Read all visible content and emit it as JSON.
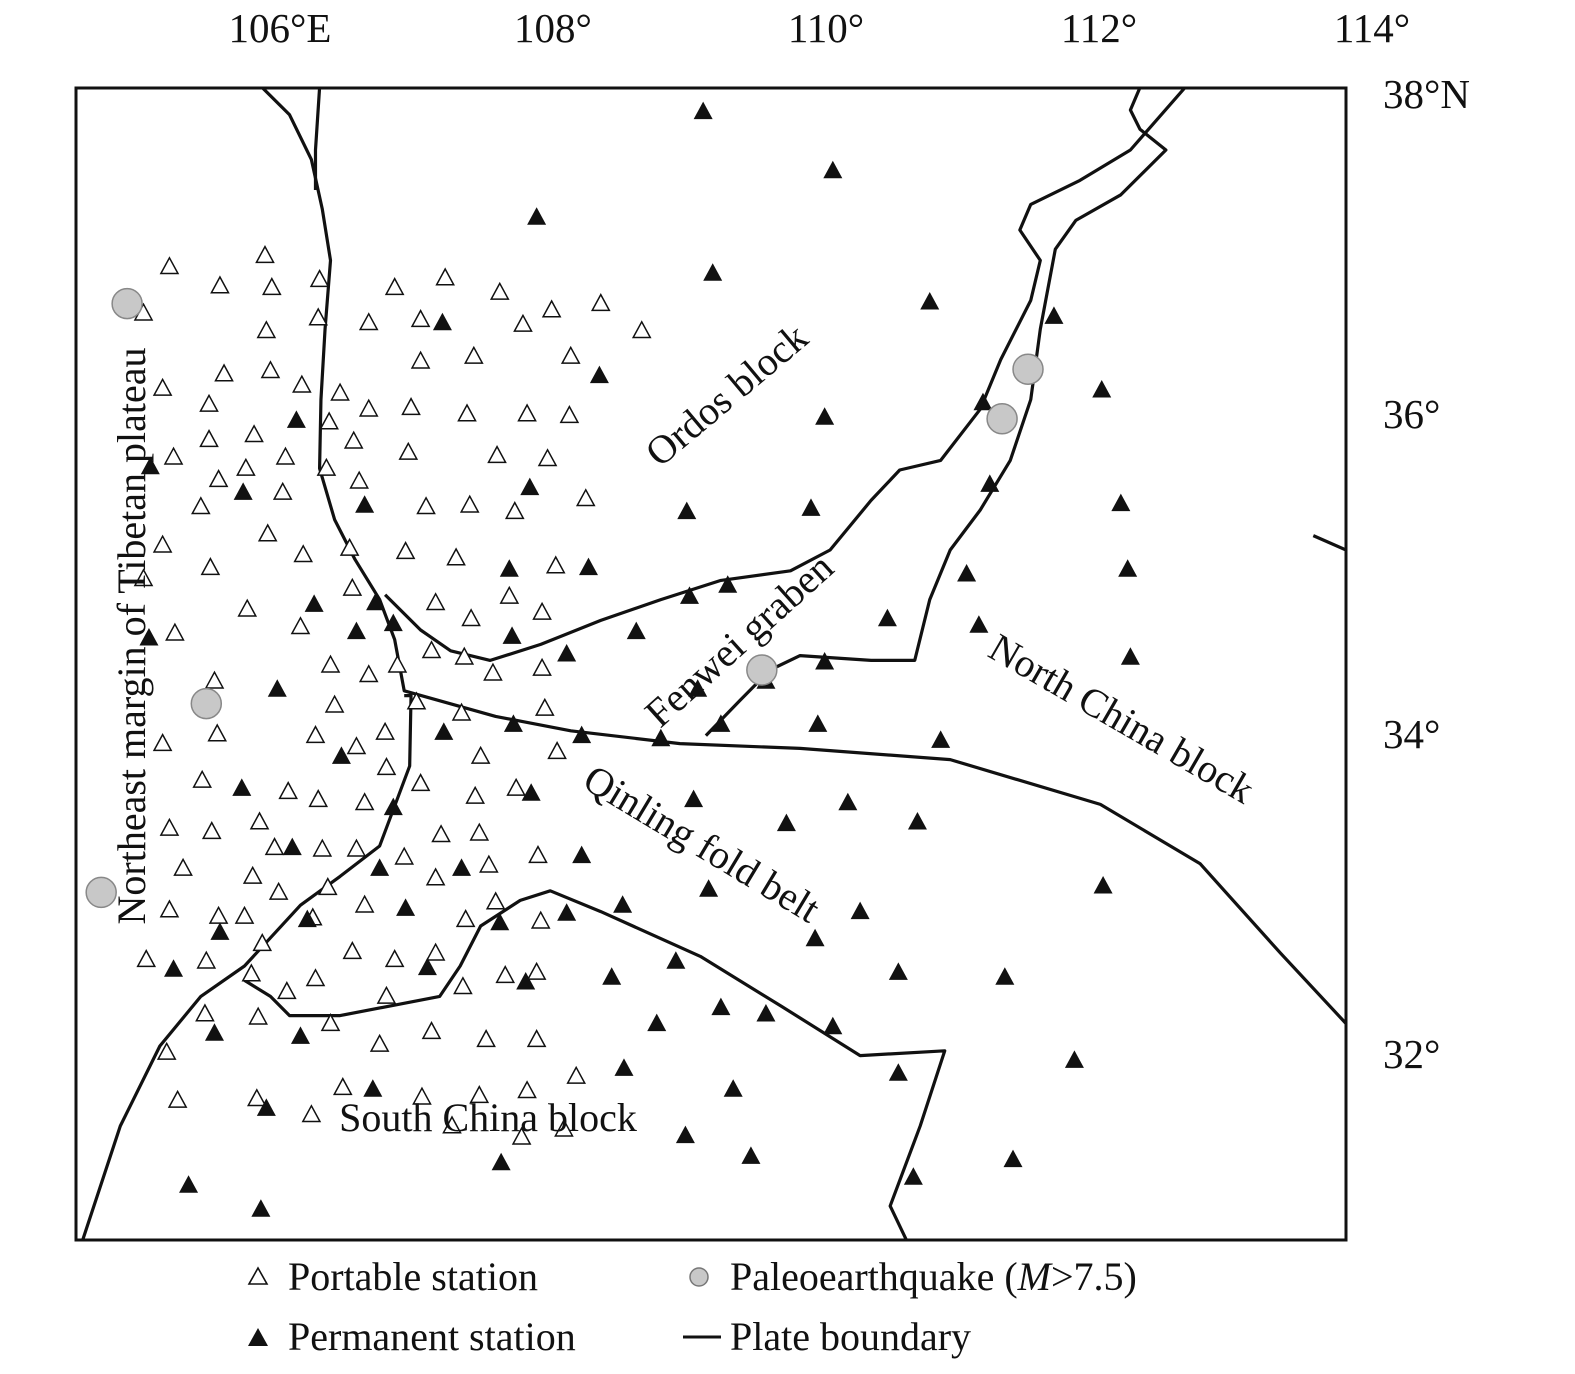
{
  "map": {
    "extent": {
      "lon": [
        104.5,
        113.81
      ],
      "lat": [
        30.8,
        38.04
      ]
    },
    "x_ticks": [
      {
        "value": 106,
        "label": "106°E"
      },
      {
        "value": 108,
        "label": "108°"
      },
      {
        "value": 110,
        "label": "110°"
      },
      {
        "value": 112,
        "label": "112°"
      },
      {
        "value": 114,
        "label": "114°"
      }
    ],
    "y_ticks": [
      {
        "value": 38,
        "label": "38°N"
      },
      {
        "value": 36,
        "label": "36°"
      },
      {
        "value": 34,
        "label": "34°"
      },
      {
        "value": 32,
        "label": "32°"
      }
    ],
    "colors": {
      "boundary": "#111111",
      "permanent": "#111111",
      "portable": "#ffffff",
      "paleo": "#c8c8c8"
    },
    "regions": {
      "ordos": "Ordos block",
      "fenwei": "Fenwei graben",
      "north_china": "North China block",
      "qinling": "Qinling fold belt",
      "south_china": "South China block",
      "tibet": "Northeast margin of Tibetan plateau"
    },
    "portable_stations": [
      [
        105.89,
        36.99
      ],
      [
        105.19,
        36.92
      ],
      [
        105.56,
        36.8
      ],
      [
        105.94,
        36.79
      ],
      [
        106.29,
        36.84
      ],
      [
        106.84,
        36.79
      ],
      [
        107.21,
        36.85
      ],
      [
        107.61,
        36.76
      ],
      [
        107.99,
        36.65
      ],
      [
        108.35,
        36.69
      ],
      [
        108.65,
        36.52
      ],
      [
        105.0,
        36.63
      ],
      [
        105.9,
        36.52
      ],
      [
        106.28,
        36.6
      ],
      [
        106.65,
        36.57
      ],
      [
        107.03,
        36.59
      ],
      [
        107.78,
        36.56
      ],
      [
        107.42,
        36.36
      ],
      [
        107.03,
        36.33
      ],
      [
        108.13,
        36.36
      ],
      [
        105.59,
        36.25
      ],
      [
        105.93,
        36.27
      ],
      [
        105.14,
        36.16
      ],
      [
        106.16,
        36.18
      ],
      [
        106.44,
        36.13
      ],
      [
        105.48,
        36.06
      ],
      [
        106.65,
        36.03
      ],
      [
        106.96,
        36.04
      ],
      [
        107.37,
        36.0
      ],
      [
        107.81,
        36.0
      ],
      [
        108.12,
        35.99
      ],
      [
        106.36,
        35.95
      ],
      [
        105.81,
        35.87
      ],
      [
        105.48,
        35.84
      ],
      [
        106.54,
        35.83
      ],
      [
        105.22,
        35.73
      ],
      [
        106.04,
        35.73
      ],
      [
        106.94,
        35.76
      ],
      [
        107.59,
        35.74
      ],
      [
        107.96,
        35.72
      ],
      [
        105.75,
        35.66
      ],
      [
        106.34,
        35.66
      ],
      [
        105.55,
        35.59
      ],
      [
        106.58,
        35.58
      ],
      [
        106.02,
        35.51
      ],
      [
        105.42,
        35.42
      ],
      [
        107.07,
        35.42
      ],
      [
        107.39,
        35.43
      ],
      [
        107.72,
        35.39
      ],
      [
        108.24,
        35.47
      ],
      [
        105.91,
        35.25
      ],
      [
        105.14,
        35.18
      ],
      [
        106.51,
        35.16
      ],
      [
        106.17,
        35.12
      ],
      [
        106.92,
        35.14
      ],
      [
        107.29,
        35.1
      ],
      [
        108.02,
        35.05
      ],
      [
        105.49,
        35.04
      ],
      [
        105.0,
        34.97
      ],
      [
        106.53,
        34.91
      ],
      [
        107.68,
        34.86
      ],
      [
        107.14,
        34.82
      ],
      [
        105.76,
        34.78
      ],
      [
        107.4,
        34.72
      ],
      [
        107.92,
        34.76
      ],
      [
        106.15,
        34.67
      ],
      [
        105.23,
        34.63
      ],
      [
        107.11,
        34.52
      ],
      [
        107.35,
        34.48
      ],
      [
        106.37,
        34.43
      ],
      [
        106.86,
        34.43
      ],
      [
        107.56,
        34.38
      ],
      [
        106.65,
        34.37
      ],
      [
        107.92,
        34.41
      ],
      [
        105.52,
        34.33
      ],
      [
        107.0,
        34.2
      ],
      [
        106.4,
        34.18
      ],
      [
        107.33,
        34.13
      ],
      [
        107.94,
        34.16
      ],
      [
        105.54,
        34.0
      ],
      [
        105.14,
        33.94
      ],
      [
        106.26,
        33.99
      ],
      [
        106.77,
        34.01
      ],
      [
        106.56,
        33.92
      ],
      [
        107.47,
        33.86
      ],
      [
        108.03,
        33.89
      ],
      [
        106.78,
        33.79
      ],
      [
        105.43,
        33.71
      ],
      [
        107.03,
        33.69
      ],
      [
        106.06,
        33.64
      ],
      [
        106.28,
        33.59
      ],
      [
        106.62,
        33.57
      ],
      [
        107.43,
        33.61
      ],
      [
        107.73,
        33.66
      ],
      [
        105.19,
        33.41
      ],
      [
        105.85,
        33.45
      ],
      [
        105.5,
        33.39
      ],
      [
        107.18,
        33.37
      ],
      [
        107.46,
        33.38
      ],
      [
        105.96,
        33.29
      ],
      [
        106.31,
        33.28
      ],
      [
        106.56,
        33.28
      ],
      [
        106.91,
        33.23
      ],
      [
        107.53,
        33.18
      ],
      [
        107.89,
        33.24
      ],
      [
        105.29,
        33.16
      ],
      [
        105.8,
        33.11
      ],
      [
        107.14,
        33.1
      ],
      [
        105.99,
        33.01
      ],
      [
        106.35,
        33.04
      ],
      [
        106.62,
        32.93
      ],
      [
        107.58,
        32.95
      ],
      [
        105.19,
        32.9
      ],
      [
        105.55,
        32.86
      ],
      [
        105.74,
        32.86
      ],
      [
        106.24,
        32.85
      ],
      [
        107.36,
        32.84
      ],
      [
        107.91,
        32.83
      ],
      [
        105.87,
        32.69
      ],
      [
        105.46,
        32.58
      ],
      [
        106.53,
        32.64
      ],
      [
        106.84,
        32.59
      ],
      [
        107.14,
        32.63
      ],
      [
        105.02,
        32.59
      ],
      [
        105.79,
        32.5
      ],
      [
        106.26,
        32.47
      ],
      [
        107.65,
        32.49
      ],
      [
        107.88,
        32.51
      ],
      [
        107.34,
        32.42
      ],
      [
        106.05,
        32.39
      ],
      [
        106.78,
        32.36
      ],
      [
        105.45,
        32.25
      ],
      [
        105.84,
        32.23
      ],
      [
        106.37,
        32.19
      ],
      [
        107.11,
        32.14
      ],
      [
        106.73,
        32.06
      ],
      [
        107.51,
        32.09
      ],
      [
        107.88,
        32.09
      ],
      [
        105.17,
        32.01
      ],
      [
        108.17,
        31.86
      ],
      [
        106.46,
        31.79
      ],
      [
        105.25,
        31.71
      ],
      [
        105.83,
        31.72
      ],
      [
        107.04,
        31.73
      ],
      [
        107.46,
        31.74
      ],
      [
        107.81,
        31.77
      ],
      [
        106.23,
        31.62
      ],
      [
        107.26,
        31.55
      ],
      [
        107.77,
        31.48
      ],
      [
        108.08,
        31.53
      ]
    ],
    "permanent_stations": [
      [
        109.1,
        37.89
      ],
      [
        110.05,
        37.52
      ],
      [
        107.88,
        37.23
      ],
      [
        109.17,
        36.88
      ],
      [
        110.76,
        36.7
      ],
      [
        107.19,
        36.57
      ],
      [
        111.67,
        36.61
      ],
      [
        108.34,
        36.24
      ],
      [
        112.02,
        36.15
      ],
      [
        111.15,
        36.07
      ],
      [
        106.12,
        35.96
      ],
      [
        109.99,
        35.98
      ],
      [
        105.05,
        35.67
      ],
      [
        105.73,
        35.51
      ],
      [
        107.83,
        35.54
      ],
      [
        106.62,
        35.43
      ],
      [
        111.2,
        35.56
      ],
      [
        108.98,
        35.39
      ],
      [
        109.89,
        35.41
      ],
      [
        112.16,
        35.44
      ],
      [
        107.68,
        35.03
      ],
      [
        108.26,
        35.04
      ],
      [
        112.21,
        35.03
      ],
      [
        111.03,
        35.0
      ],
      [
        109.28,
        34.93
      ],
      [
        109.0,
        34.86
      ],
      [
        106.25,
        34.81
      ],
      [
        106.7,
        34.82
      ],
      [
        110.45,
        34.72
      ],
      [
        111.12,
        34.68
      ],
      [
        105.04,
        34.6
      ],
      [
        106.83,
        34.69
      ],
      [
        106.56,
        34.64
      ],
      [
        107.7,
        34.61
      ],
      [
        108.61,
        34.64
      ],
      [
        108.1,
        34.5
      ],
      [
        112.23,
        34.48
      ],
      [
        109.99,
        34.45
      ],
      [
        109.56,
        34.33
      ],
      [
        105.98,
        34.28
      ],
      [
        109.06,
        34.28
      ],
      [
        109.23,
        34.06
      ],
      [
        107.71,
        34.06
      ],
      [
        109.94,
        34.06
      ],
      [
        108.21,
        33.99
      ],
      [
        107.2,
        34.01
      ],
      [
        108.79,
        33.97
      ],
      [
        110.84,
        33.96
      ],
      [
        106.45,
        33.86
      ],
      [
        105.72,
        33.66
      ],
      [
        107.84,
        33.63
      ],
      [
        109.03,
        33.59
      ],
      [
        110.16,
        33.57
      ],
      [
        109.71,
        33.44
      ],
      [
        110.67,
        33.45
      ],
      [
        106.83,
        33.54
      ],
      [
        106.09,
        33.29
      ],
      [
        108.21,
        33.24
      ],
      [
        107.33,
        33.16
      ],
      [
        106.73,
        33.16
      ],
      [
        112.03,
        33.05
      ],
      [
        109.14,
        33.03
      ],
      [
        106.92,
        32.91
      ],
      [
        108.51,
        32.93
      ],
      [
        108.1,
        32.88
      ],
      [
        107.61,
        32.82
      ],
      [
        106.2,
        32.84
      ],
      [
        105.56,
        32.76
      ],
      [
        110.25,
        32.89
      ],
      [
        109.92,
        32.72
      ],
      [
        108.9,
        32.58
      ],
      [
        107.08,
        32.54
      ],
      [
        105.22,
        32.53
      ],
      [
        110.53,
        32.51
      ],
      [
        111.31,
        32.48
      ],
      [
        108.43,
        32.48
      ],
      [
        107.8,
        32.45
      ],
      [
        109.23,
        32.29
      ],
      [
        109.56,
        32.25
      ],
      [
        108.76,
        32.19
      ],
      [
        110.05,
        32.17
      ],
      [
        105.52,
        32.13
      ],
      [
        106.15,
        32.11
      ],
      [
        111.82,
        31.96
      ],
      [
        108.52,
        31.91
      ],
      [
        110.53,
        31.88
      ],
      [
        109.32,
        31.78
      ],
      [
        106.68,
        31.78
      ],
      [
        105.9,
        31.66
      ],
      [
        108.97,
        31.49
      ],
      [
        109.45,
        31.36
      ],
      [
        107.62,
        31.32
      ],
      [
        111.37,
        31.34
      ],
      [
        105.33,
        31.18
      ],
      [
        110.64,
        31.23
      ],
      [
        105.86,
        31.03
      ]
    ],
    "paleoearthquakes": [
      [
        104.88,
        36.69
      ],
      [
        111.48,
        36.28
      ],
      [
        111.29,
        35.97
      ],
      [
        105.46,
        34.19
      ],
      [
        109.53,
        34.4
      ],
      [
        104.69,
        33.01
      ]
    ],
    "plate_boundaries": [
      [
        [
          105.87,
          38.04
        ],
        [
          106.07,
          37.87
        ],
        [
          106.23,
          37.59
        ],
        [
          106.31,
          37.28
        ],
        [
          106.37,
          36.96
        ],
        [
          106.33,
          36.53
        ],
        [
          106.3,
          36.09
        ],
        [
          106.29,
          35.66
        ],
        [
          106.4,
          35.34
        ],
        [
          106.55,
          35.09
        ],
        [
          106.73,
          34.84
        ],
        [
          106.84,
          34.59
        ],
        [
          106.91,
          34.27
        ],
        [
          107.58,
          34.11
        ],
        [
          108.13,
          34.02
        ],
        [
          108.93,
          33.94
        ],
        [
          109.81,
          33.91
        ],
        [
          110.91,
          33.84
        ],
        [
          112.01,
          33.56
        ],
        [
          112.74,
          33.19
        ],
        [
          113.33,
          32.63
        ],
        [
          113.81,
          32.19
        ]
      ],
      [
        [
          106.29,
          38.04
        ],
        [
          106.26,
          37.65
        ],
        [
          106.26,
          37.4
        ]
      ],
      [
        [
          112.63,
          38.04
        ],
        [
          112.23,
          37.65
        ],
        [
          111.86,
          37.46
        ],
        [
          111.5,
          37.31
        ],
        [
          111.42,
          37.15
        ],
        [
          111.57,
          36.96
        ],
        [
          111.5,
          36.71
        ],
        [
          111.28,
          36.34
        ],
        [
          111.13,
          36.03
        ],
        [
          110.84,
          35.71
        ],
        [
          110.54,
          35.65
        ],
        [
          110.33,
          35.46
        ],
        [
          110.03,
          35.15
        ],
        [
          109.74,
          35.02
        ],
        [
          109.23,
          34.96
        ],
        [
          108.79,
          34.84
        ],
        [
          108.35,
          34.71
        ],
        [
          107.91,
          34.56
        ],
        [
          107.54,
          34.46
        ],
        [
          107.25,
          34.52
        ],
        [
          107.03,
          34.65
        ],
        [
          106.77,
          34.87
        ]
      ],
      [
        [
          112.3,
          38.04
        ],
        [
          112.23,
          37.9
        ],
        [
          112.3,
          37.78
        ],
        [
          112.49,
          37.65
        ],
        [
          112.16,
          37.37
        ],
        [
          111.83,
          37.21
        ],
        [
          111.68,
          37.03
        ],
        [
          111.57,
          36.53
        ],
        [
          111.5,
          36.09
        ],
        [
          111.35,
          35.71
        ],
        [
          111.13,
          35.4
        ],
        [
          110.91,
          35.15
        ],
        [
          110.76,
          34.84
        ],
        [
          110.65,
          34.46
        ],
        [
          110.33,
          34.46
        ],
        [
          109.81,
          34.49
        ],
        [
          109.59,
          34.4
        ],
        [
          109.37,
          34.21
        ],
        [
          109.12,
          33.99
        ]
      ],
      [
        [
          106.91,
          34.24
        ],
        [
          106.96,
          34.24
        ],
        [
          106.95,
          33.8
        ],
        [
          106.84,
          33.55
        ],
        [
          106.73,
          33.3
        ],
        [
          106.44,
          33.11
        ],
        [
          106.15,
          32.93
        ],
        [
          105.74,
          32.55
        ],
        [
          105.42,
          32.36
        ],
        [
          105.12,
          32.05
        ],
        [
          104.83,
          31.55
        ],
        [
          104.54,
          30.8
        ]
      ],
      [
        [
          105.74,
          32.46
        ],
        [
          105.93,
          32.36
        ],
        [
          106.07,
          32.24
        ],
        [
          106.44,
          32.24
        ],
        [
          107.17,
          32.36
        ],
        [
          107.32,
          32.55
        ],
        [
          107.47,
          32.8
        ],
        [
          107.76,
          32.96
        ],
        [
          107.98,
          33.02
        ],
        [
          108.35,
          32.89
        ],
        [
          109.08,
          32.61
        ],
        [
          109.67,
          32.3
        ],
        [
          110.25,
          31.99
        ],
        [
          110.87,
          32.02
        ],
        [
          110.69,
          31.55
        ],
        [
          110.47,
          31.05
        ],
        [
          110.61,
          30.8
        ]
      ],
      [
        [
          113.57,
          35.24
        ],
        [
          113.81,
          35.15
        ]
      ]
    ]
  },
  "legend": {
    "portable": "Portable station",
    "permanent": "Permanent station",
    "paleo_prefix": "Paleoearthquake (",
    "paleo_var": "M",
    "paleo_suffix": ">7.5)",
    "boundary": "Plate boundary"
  }
}
